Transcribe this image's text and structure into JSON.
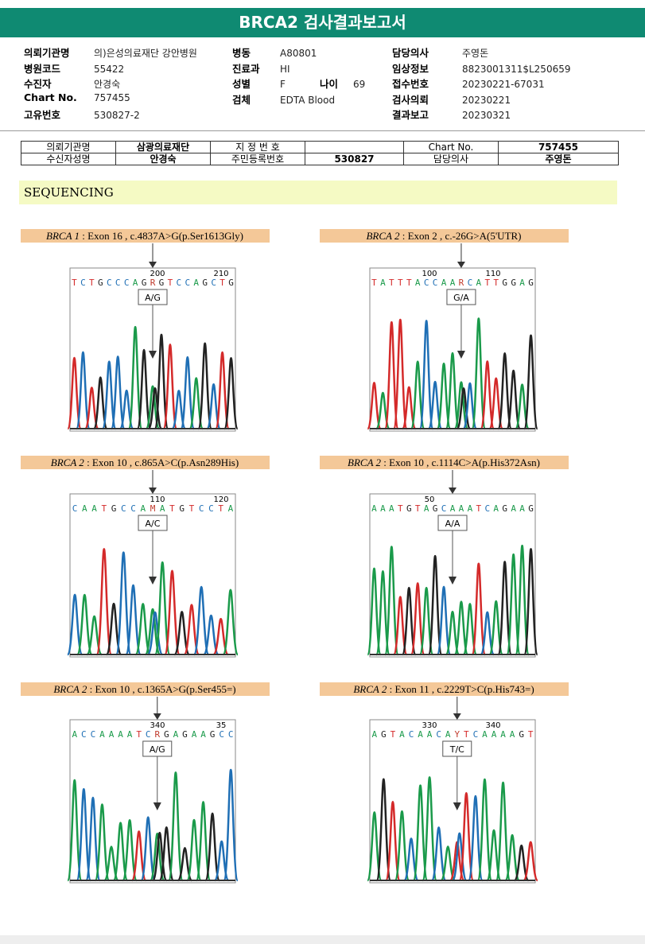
{
  "header": {
    "title": "BRCA2 검사결과보고서"
  },
  "info": [
    [
      [
        "의뢰기관명",
        "의)은성의료재단 강안병원"
      ],
      [
        "병원코드",
        "55422"
      ],
      [
        "수진자",
        "안경숙"
      ],
      [
        "Chart No.",
        "757455"
      ],
      [
        "고유번호",
        "530827-2"
      ]
    ],
    [
      [
        "병동",
        "A80801"
      ],
      [
        "진료과",
        "HI"
      ],
      [
        "성별",
        "F"
      ],
      [
        "검체",
        "EDTA Blood"
      ]
    ],
    [
      [
        "담당의사",
        "주영돈"
      ],
      [
        "임상정보",
        "8823001311$L250659"
      ],
      [
        "접수번호",
        "20230221-67031"
      ],
      [
        "검사의뢰",
        "20230221"
      ],
      [
        "결과보고",
        "20230321"
      ]
    ]
  ],
  "age": {
    "label": "나이",
    "value": "69"
  },
  "table": {
    "rows": [
      [
        "의뢰기관명",
        "삼광의료재단",
        "지 정 번 호",
        "Chart No.",
        "757455"
      ],
      [
        "수신자성명",
        "안경숙",
        "주민등록번호",
        "530827",
        "담당의사",
        "주영돈"
      ]
    ]
  },
  "section": "SEQUENCING",
  "panels": [
    {
      "gene": "BRCA 1",
      "desc": " : Exon 16 , c.4837A>G(p.Ser1613Gly)",
      "positions": [
        "200",
        "210"
      ],
      "sequence": "TCTGCCCAGRGTCCAGCTG",
      "call": "A/G"
    },
    {
      "gene": "BRCA 2",
      "desc": " : Exon 2 , c.-26G>A(5'UTR)",
      "positions": [
        "100",
        "110"
      ],
      "sequence": "TATTTACCAARCATTGGAG",
      "call": "G/A"
    },
    {
      "gene": "BRCA 2",
      "desc": " : Exon 10 , c.865A>C(p.Asn289His)",
      "positions": [
        "110",
        "120"
      ],
      "sequence": "CAATGCCAMATGTCCTA",
      "call": "A/C"
    },
    {
      "gene": "BRCA 2",
      "desc": " : Exon 10 , c.1114C>A(p.His372Asn)",
      "positions": [
        "50"
      ],
      "sequence": "AAATGTAGCAAATCAGAAG",
      "call": "A/A"
    },
    {
      "gene": "BRCA 2",
      "desc": " : Exon 10 , c.1365A>G(p.Ser455=)",
      "positions": [
        "340",
        "35"
      ],
      "sequence": "ACCAAAATCRGAGAAGCC",
      "call": "A/G"
    },
    {
      "gene": "BRCA 2",
      "desc": " : Exon 11 , c.2229T>C(p.His743=)",
      "positions": [
        "330",
        "340"
      ],
      "sequence": "AGTACAACAYTCAAAAGT",
      "call": "T/C"
    }
  ]
}
